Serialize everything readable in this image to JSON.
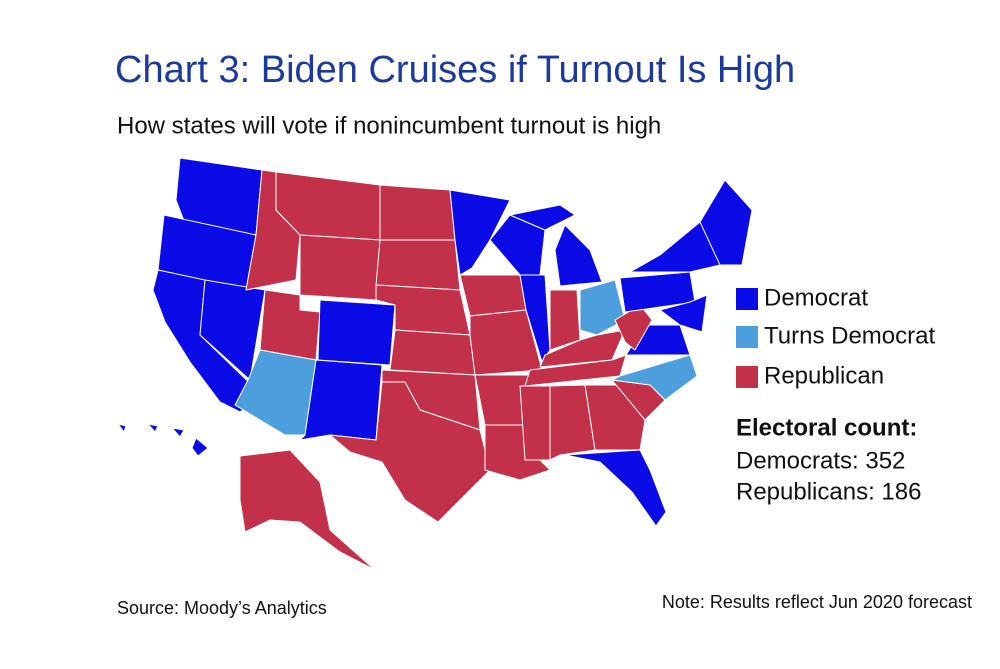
{
  "header": {
    "title": "Chart 3: Biden Cruises if Turnout Is High",
    "subtitle": "How states will vote if nonincumbent turnout is high"
  },
  "legend": {
    "items": [
      {
        "label": "Democrat",
        "color": "#0b0be8"
      },
      {
        "label": "Turns Democrat",
        "color": "#4c9fdc"
      },
      {
        "label": "Republican",
        "color": "#c3304a"
      }
    ]
  },
  "electoral_count": {
    "title": "Electoral count:",
    "lines": [
      "Democrats: 352",
      "Republicans: 186"
    ]
  },
  "footer": {
    "source": "Source: Moody’s Analytics",
    "note": "Note: Results reflect Jun 2020 forecast"
  }
}
